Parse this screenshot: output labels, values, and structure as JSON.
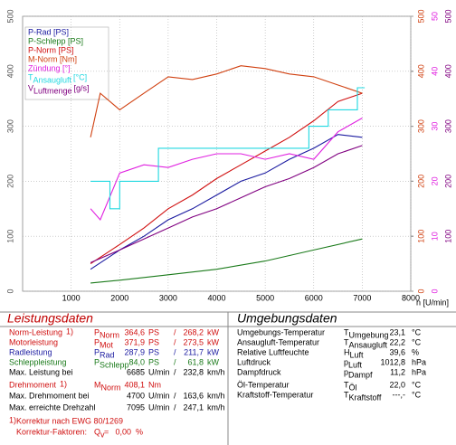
{
  "chart_data": {
    "type": "line",
    "x_label": "n [U/min]",
    "xlim": [
      0,
      8000
    ],
    "xticks": [
      1000,
      2000,
      3000,
      4000,
      5000,
      6000,
      7000,
      8000
    ],
    "ylim": [
      0,
      500
    ],
    "yticks": [
      0,
      100,
      200,
      300,
      400,
      500
    ],
    "y2lim": [
      0,
      500
    ],
    "y2ticks": [
      0,
      100,
      200,
      300,
      400,
      500
    ],
    "y2color": "#d04010",
    "y3lim": [
      0,
      50
    ],
    "y3ticks": [
      0,
      10,
      20,
      30,
      40,
      50
    ],
    "y3color": "#e020e0",
    "y4lim": [
      0,
      500
    ],
    "y4ticks": [
      100,
      200,
      300,
      400,
      500
    ],
    "y4color": "#800080",
    "grid": true,
    "series": [
      {
        "name": "P-Rad [PS]",
        "color": "#1a1aa0",
        "axis": "y",
        "x": [
          1400,
          2000,
          2500,
          3000,
          3500,
          4000,
          4500,
          5000,
          5500,
          6000,
          6500,
          7000
        ],
        "values": [
          40,
          75,
          100,
          130,
          150,
          175,
          200,
          215,
          240,
          260,
          285,
          280
        ]
      },
      {
        "name": "P-Schlepp [PS]",
        "color": "#1a7a1a",
        "axis": "y",
        "x": [
          1400,
          2000,
          3000,
          4000,
          5000,
          6000,
          7000
        ],
        "values": [
          15,
          20,
          30,
          40,
          55,
          75,
          95
        ]
      },
      {
        "name": "P-Norm [PS]",
        "color": "#d01010",
        "axis": "y",
        "x": [
          1400,
          2000,
          2500,
          3000,
          3500,
          4000,
          4500,
          5000,
          5500,
          6000,
          6500,
          7000
        ],
        "values": [
          50,
          85,
          115,
          150,
          175,
          205,
          230,
          255,
          280,
          310,
          345,
          360
        ]
      },
      {
        "name": "M-Norm [Nm]",
        "color": "#d04010",
        "axis": "y2",
        "x": [
          1400,
          1600,
          2000,
          2500,
          3000,
          3500,
          4000,
          4500,
          5000,
          5500,
          6000,
          6500,
          7000
        ],
        "values": [
          280,
          360,
          330,
          360,
          390,
          385,
          395,
          410,
          405,
          395,
          390,
          375,
          360
        ]
      },
      {
        "name": "Zündung [°]",
        "color": "#e020e0",
        "axis": "y3",
        "x": [
          1400,
          1600,
          2000,
          2500,
          3000,
          3500,
          4000,
          4500,
          5000,
          5500,
          6000,
          6500,
          7000
        ],
        "values": [
          15,
          13,
          21.5,
          23,
          22.5,
          24,
          25,
          25,
          24,
          25,
          24,
          29,
          31.5
        ]
      },
      {
        "name": "T",
        "name_sub": "Ansaugluft",
        "name_unit": "[°C]",
        "color": "#20d8e0",
        "axis": "y3",
        "x": [
          1400,
          1500,
          1500,
          1800,
          1800,
          2000,
          2000,
          2800,
          2800,
          5900,
          5900,
          6300,
          6300,
          6900,
          6900,
          7050
        ],
        "values": [
          20,
          20,
          20,
          20,
          15,
          15,
          20,
          20,
          26,
          26,
          30,
          30,
          33,
          33,
          37,
          37
        ]
      },
      {
        "name": "V",
        "name_sub": "Luftmenge",
        "name_unit": "[g/s]",
        "color": "#800080",
        "axis": "y4",
        "x": [
          1400,
          2000,
          2500,
          3000,
          3500,
          4000,
          4500,
          5000,
          5500,
          6000,
          6500,
          7000
        ],
        "values": [
          52,
          75,
          95,
          115,
          135,
          150,
          170,
          190,
          205,
          225,
          250,
          265
        ]
      }
    ]
  },
  "power_table": {
    "title": "Leistungsdaten",
    "rows": [
      {
        "label": "Norm-Leistung",
        "note": "1)",
        "symbol": "P",
        "sub": "Norm",
        "v1": "364,6",
        "u1": "PS",
        "sep": "/",
        "v2": "268,2",
        "u2": "kW",
        "color": "#d01010"
      },
      {
        "label": "Motorleistung",
        "symbol": "P",
        "sub": "Mot",
        "v1": "371,9",
        "u1": "PS",
        "sep": "/",
        "v2": "273,5",
        "u2": "kW",
        "color": "#d01010"
      },
      {
        "label": "Radleistung",
        "symbol": "P",
        "sub": "Rad",
        "v1": "287,9",
        "u1": "PS",
        "sep": "/",
        "v2": "211,7",
        "u2": "kW",
        "color": "#1a1aa0"
      },
      {
        "label": "Schleppleistung",
        "symbol": "P",
        "sub": "Schlepp",
        "v1": "84,0",
        "u1": "PS",
        "sep": "/",
        "v2": "61,8",
        "u2": "kW",
        "color": "#1a7a1a"
      },
      {
        "label": "Max. Leistung bei",
        "v1": "6685",
        "u1": "U/min",
        "sep": "/",
        "v2": "232,8",
        "u2": "km/h",
        "color": "#000000"
      },
      {
        "label": "Drehmoment",
        "note": "1)",
        "symbol": "M",
        "sub": "Norm",
        "v1": "408,1",
        "u1": "Nm",
        "color": "#d01010"
      },
      {
        "label": "Max. Drehmoment bei",
        "v1": "4700",
        "u1": "U/min",
        "sep": "/",
        "v2": "163,6",
        "u2": "km/h",
        "color": "#000000"
      },
      {
        "label": "Max. erreichte Drehzahl",
        "v1": "7095",
        "u1": "U/min",
        "sep": "/",
        "v2": "247,1",
        "u2": "km/h",
        "color": "#000000"
      }
    ],
    "footnote": {
      "note": "1)",
      "text": "Korrektur nach EWG 80/1269"
    },
    "factor": {
      "label": "Korrektur-Faktoren:",
      "symbol": "Q",
      "sub": "v",
      "eq": "=",
      "value": "0,00",
      "unit": "%"
    }
  },
  "env_table": {
    "title": "Umgebungsdaten",
    "rows": [
      {
        "label": "Umgebungs-Temperatur",
        "symbol": "T",
        "sub": "Umgebung",
        "value": "23,1",
        "unit": "°C"
      },
      {
        "label": "Ansaugluft-Temperatur",
        "symbol": "T",
        "sub": "Ansaugluft",
        "value": "22,2",
        "unit": "°C"
      },
      {
        "label": "Relative Luftfeuchte",
        "symbol": "H",
        "sub": "Luft",
        "value": "39,6",
        "unit": "%"
      },
      {
        "label": "Luftdruck",
        "symbol": "p",
        "sub": "Luft",
        "value": "1012,8",
        "unit": "hPa"
      },
      {
        "label": "Dampfdruck",
        "symbol": "p",
        "sub": "Dampf",
        "value": "11,2",
        "unit": "hPa"
      },
      {
        "label": "Öl-Temperatur",
        "symbol": "T",
        "sub": "Öl",
        "value": "22,0",
        "unit": "°C"
      },
      {
        "label": "Kraftstoff-Temperatur",
        "symbol": "T",
        "sub": "Kraftstoff",
        "value": "---,-",
        "unit": "°C"
      }
    ]
  }
}
